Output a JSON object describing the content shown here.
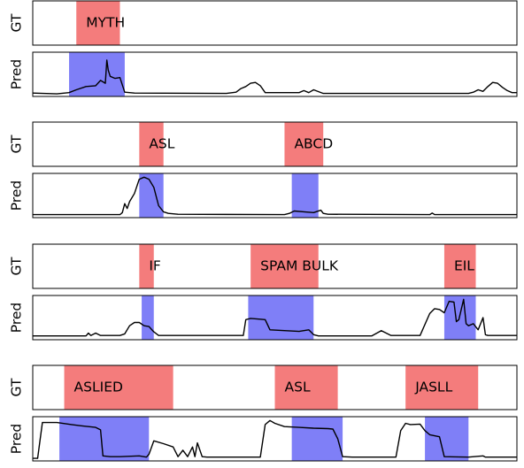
{
  "chart_data": [
    {
      "type": "area",
      "xlim": [
        0,
        100
      ],
      "gt": [
        {
          "label": "MYTH",
          "start": 9,
          "end": 18
        }
      ],
      "pred_segments": [
        {
          "start": 7.5,
          "end": 19
        }
      ],
      "pred_line": [
        [
          0,
          0.04
        ],
        [
          5,
          0.02
        ],
        [
          7.5,
          0.05
        ],
        [
          9,
          0.12
        ],
        [
          11,
          0.2
        ],
        [
          13,
          0.22
        ],
        [
          14,
          0.35
        ],
        [
          15,
          0.28
        ],
        [
          15.3,
          0.85
        ],
        [
          15.6,
          0.6
        ],
        [
          16,
          0.45
        ],
        [
          17,
          0.4
        ],
        [
          18,
          0.42
        ],
        [
          19,
          0.06
        ],
        [
          21,
          0.04
        ],
        [
          40,
          0.03
        ],
        [
          42,
          0.06
        ],
        [
          43,
          0.15
        ],
        [
          44,
          0.2
        ],
        [
          45,
          0.28
        ],
        [
          46,
          0.3
        ],
        [
          47,
          0.22
        ],
        [
          48,
          0.05
        ],
        [
          55,
          0.05
        ],
        [
          56,
          0.1
        ],
        [
          57,
          0.05
        ],
        [
          58,
          0.12
        ],
        [
          60,
          0.03
        ],
        [
          90,
          0.03
        ],
        [
          91,
          0.06
        ],
        [
          92,
          0.12
        ],
        [
          93,
          0.08
        ],
        [
          94,
          0.2
        ],
        [
          95,
          0.3
        ],
        [
          96,
          0.28
        ],
        [
          97,
          0.18
        ],
        [
          98,
          0.1
        ],
        [
          99,
          0.05
        ],
        [
          100,
          0.05
        ]
      ]
    },
    {
      "type": "area",
      "xlim": [
        0,
        100
      ],
      "gt": [
        {
          "label": "ASL",
          "start": 22,
          "end": 27
        },
        {
          "label": "ABCD",
          "start": 52,
          "end": 60
        }
      ],
      "pred_segments": [
        {
          "start": 22,
          "end": 27
        },
        {
          "start": 53.5,
          "end": 59
        }
      ],
      "pred_line": [
        [
          0,
          0.03
        ],
        [
          18,
          0.03
        ],
        [
          18.5,
          0.08
        ],
        [
          19,
          0.3
        ],
        [
          19.5,
          0.18
        ],
        [
          20,
          0.35
        ],
        [
          21,
          0.55
        ],
        [
          22,
          0.9
        ],
        [
          23,
          0.95
        ],
        [
          24,
          0.9
        ],
        [
          25,
          0.7
        ],
        [
          26,
          0.25
        ],
        [
          27,
          0.1
        ],
        [
          28,
          0.06
        ],
        [
          30,
          0.04
        ],
        [
          52,
          0.03
        ],
        [
          53,
          0.06
        ],
        [
          54,
          0.12
        ],
        [
          56,
          0.1
        ],
        [
          58,
          0.08
        ],
        [
          59.5,
          0.14
        ],
        [
          60,
          0.06
        ],
        [
          61,
          0.04
        ],
        [
          82,
          0.03
        ],
        [
          82.5,
          0.07
        ],
        [
          83,
          0.03
        ],
        [
          100,
          0.03
        ]
      ]
    },
    {
      "type": "area",
      "xlim": [
        0,
        100
      ],
      "gt": [
        {
          "label": "IF",
          "start": 22,
          "end": 25
        },
        {
          "label": "SPAM BULK",
          "start": 45,
          "end": 59
        },
        {
          "label": "EIL",
          "start": 85,
          "end": 91.5
        }
      ],
      "pred_segments": [
        {
          "start": 22.5,
          "end": 25
        },
        {
          "start": 44.5,
          "end": 58
        },
        {
          "start": 85,
          "end": 91.5
        }
      ],
      "pred_line": [
        [
          0,
          0.05
        ],
        [
          11,
          0.05
        ],
        [
          11.5,
          0.12
        ],
        [
          12,
          0.06
        ],
        [
          13,
          0.12
        ],
        [
          14,
          0.06
        ],
        [
          18,
          0.06
        ],
        [
          19,
          0.1
        ],
        [
          20,
          0.3
        ],
        [
          21,
          0.38
        ],
        [
          22,
          0.38
        ],
        [
          23,
          0.3
        ],
        [
          24,
          0.28
        ],
        [
          25,
          0.15
        ],
        [
          26,
          0.06
        ],
        [
          43.5,
          0.06
        ],
        [
          44,
          0.45
        ],
        [
          45,
          0.48
        ],
        [
          47,
          0.46
        ],
        [
          48,
          0.45
        ],
        [
          49,
          0.2
        ],
        [
          52,
          0.18
        ],
        [
          55,
          0.16
        ],
        [
          57,
          0.2
        ],
        [
          58,
          0.08
        ],
        [
          59,
          0.05
        ],
        [
          70,
          0.05
        ],
        [
          72,
          0.18
        ],
        [
          73,
          0.12
        ],
        [
          74,
          0.06
        ],
        [
          80,
          0.06
        ],
        [
          82,
          0.6
        ],
        [
          83,
          0.72
        ],
        [
          84,
          0.7
        ],
        [
          85,
          0.62
        ],
        [
          86,
          0.9
        ],
        [
          87,
          0.88
        ],
        [
          87.5,
          0.4
        ],
        [
          88,
          0.45
        ],
        [
          89,
          0.95
        ],
        [
          89.5,
          0.35
        ],
        [
          90,
          0.3
        ],
        [
          91,
          0.35
        ],
        [
          92,
          0.2
        ],
        [
          93,
          0.5
        ],
        [
          93.5,
          0.08
        ],
        [
          94,
          0.06
        ],
        [
          100,
          0.06
        ]
      ]
    },
    {
      "type": "area",
      "xlim": [
        0,
        100
      ],
      "gt": [
        {
          "label": "ASLIED",
          "start": 6.5,
          "end": 29
        },
        {
          "label": "ASL",
          "start": 50,
          "end": 63
        },
        {
          "label": "JASLL",
          "start": 77,
          "end": 92
        }
      ],
      "pred_segments": [
        {
          "start": 5.5,
          "end": 24
        },
        {
          "start": 53.5,
          "end": 64
        },
        {
          "start": 81,
          "end": 90
        }
      ],
      "pred_line": [
        [
          0,
          0.02
        ],
        [
          1,
          0.02
        ],
        [
          2,
          0.9
        ],
        [
          5,
          0.9
        ],
        [
          8,
          0.85
        ],
        [
          10,
          0.82
        ],
        [
          13,
          0.78
        ],
        [
          14,
          0.72
        ],
        [
          14.5,
          0.08
        ],
        [
          16,
          0.06
        ],
        [
          18,
          0.06
        ],
        [
          22,
          0.08
        ],
        [
          23.5,
          0.05
        ],
        [
          24,
          0.12
        ],
        [
          25,
          0.45
        ],
        [
          27,
          0.38
        ],
        [
          29,
          0.3
        ],
        [
          30,
          0.06
        ],
        [
          31,
          0.22
        ],
        [
          32,
          0.06
        ],
        [
          33,
          0.3
        ],
        [
          33.5,
          0.06
        ],
        [
          34,
          0.4
        ],
        [
          35,
          0.06
        ],
        [
          36,
          0.05
        ],
        [
          47,
          0.05
        ],
        [
          48,
          0.85
        ],
        [
          49,
          0.95
        ],
        [
          50,
          0.88
        ],
        [
          52,
          0.8
        ],
        [
          55,
          0.78
        ],
        [
          58,
          0.76
        ],
        [
          61,
          0.75
        ],
        [
          62,
          0.74
        ],
        [
          63,
          0.5
        ],
        [
          64,
          0.06
        ],
        [
          66,
          0.05
        ],
        [
          75,
          0.05
        ],
        [
          76,
          0.7
        ],
        [
          77,
          0.88
        ],
        [
          78,
          0.85
        ],
        [
          80,
          0.86
        ],
        [
          81,
          0.7
        ],
        [
          82,
          0.6
        ],
        [
          84,
          0.55
        ],
        [
          85,
          0.06
        ],
        [
          90,
          0.05
        ],
        [
          93,
          0.08
        ],
        [
          93.5,
          0.05
        ],
        [
          100,
          0.05
        ]
      ]
    }
  ],
  "labels": {
    "gt": "GT",
    "pred": "Pred"
  },
  "colors": {
    "gt_fill": "#f47c7c",
    "pred_fill": "#7f7ff7",
    "line": "#000000",
    "frame": "#000000"
  }
}
